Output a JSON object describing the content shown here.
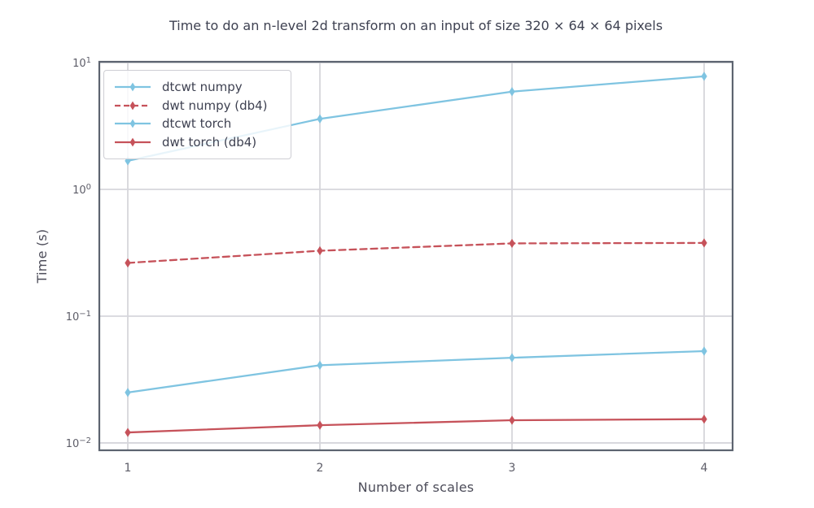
{
  "chart_data": {
    "type": "line",
    "title": "Time to do an n-level 2d transform on an input of size 320 × 64 × 64 pixels",
    "xlabel": "Number of scales",
    "ylabel": "Time (s)",
    "yscale": "log",
    "grid": true,
    "legend_position": "upper left",
    "x": [
      1,
      2,
      3,
      4
    ],
    "xticks": [
      1,
      2,
      3,
      4
    ],
    "ytick_exponents": [
      1,
      0,
      -1,
      -2
    ],
    "xlim": [
      0.8517,
      4.1483
    ],
    "ylim": [
      0.00875,
      10.15
    ],
    "series": [
      {
        "name": "dtcwt numpy",
        "color": "#7fc4e1",
        "style": "solid",
        "values": [
          1.68,
          3.6,
          5.9,
          7.8
        ]
      },
      {
        "name": "dwt numpy (db4)",
        "color": "#c6525a",
        "style": "dashed",
        "values": [
          0.263,
          0.328,
          0.375,
          0.378
        ]
      },
      {
        "name": "dtcwt torch",
        "color": "#7fc4e1",
        "style": "solid",
        "values": [
          0.025,
          0.041,
          0.047,
          0.053
        ]
      },
      {
        "name": "dwt torch (db4)",
        "color": "#c6525a",
        "style": "solid",
        "values": [
          0.0121,
          0.0138,
          0.0151,
          0.0154
        ]
      }
    ],
    "colors": {
      "grid": "#d6d6db",
      "spine": "#5d6470",
      "title_text": "#3e4151",
      "tick_text": "#5d5d68",
      "label_text": "#4c4c59"
    }
  }
}
